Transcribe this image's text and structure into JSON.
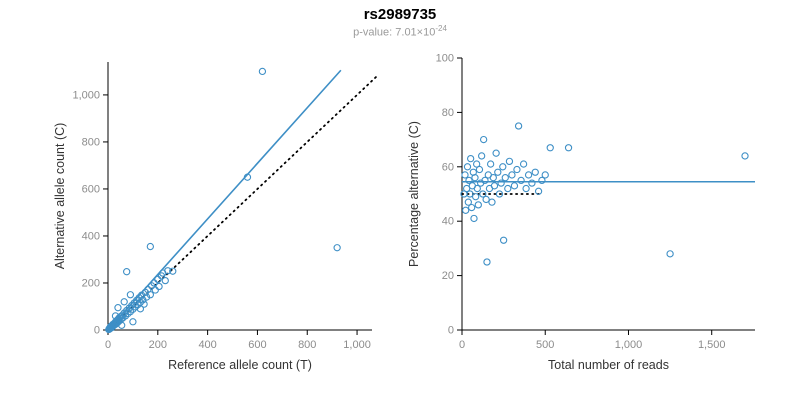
{
  "header": {
    "title": "rs2989735",
    "pvalue_prefix": "p-value: 7.01×10",
    "pvalue_exponent": "-24"
  },
  "colors": {
    "accent": "#3E8FC6",
    "reference_line": "#000000",
    "axis": "#000000",
    "tick_label": "#8c8c8c",
    "axis_title": "#333333",
    "subtitle": "#9a9a9a"
  },
  "chart_data": [
    {
      "type": "scatter",
      "title": "",
      "xlabel": "Reference allele count (T)",
      "ylabel": "Alternative allele count (C)",
      "xlim": [
        0,
        1060
      ],
      "ylim": [
        0,
        1140
      ],
      "xticks": [
        0,
        200,
        400,
        600,
        800,
        1000
      ],
      "yticks": [
        0,
        200,
        400,
        600,
        800,
        1000
      ],
      "grid": false,
      "legend": "none",
      "point_color": "#3E8FC6",
      "points": [
        [
          3,
          2
        ],
        [
          5,
          6
        ],
        [
          6,
          4
        ],
        [
          8,
          9
        ],
        [
          10,
          7
        ],
        [
          10,
          14
        ],
        [
          12,
          11
        ],
        [
          14,
          17
        ],
        [
          15,
          10
        ],
        [
          17,
          20
        ],
        [
          18,
          14
        ],
        [
          20,
          24
        ],
        [
          22,
          19
        ],
        [
          25,
          28
        ],
        [
          27,
          22
        ],
        [
          30,
          34
        ],
        [
          32,
          26
        ],
        [
          30,
          60
        ],
        [
          35,
          40
        ],
        [
          38,
          31
        ],
        [
          40,
          45
        ],
        [
          42,
          36
        ],
        [
          40,
          95
        ],
        [
          45,
          52
        ],
        [
          48,
          41
        ],
        [
          50,
          57
        ],
        [
          55,
          48
        ],
        [
          55,
          20
        ],
        [
          58,
          63
        ],
        [
          60,
          52
        ],
        [
          65,
          72
        ],
        [
          65,
          120
        ],
        [
          70,
          60
        ],
        [
          75,
          83
        ],
        [
          75,
          248
        ],
        [
          80,
          70
        ],
        [
          85,
          93
        ],
        [
          90,
          78
        ],
        [
          90,
          150
        ],
        [
          95,
          104
        ],
        [
          100,
          88
        ],
        [
          100,
          35
        ],
        [
          105,
          115
        ],
        [
          110,
          98
        ],
        [
          115,
          126
        ],
        [
          120,
          108
        ],
        [
          125,
          137
        ],
        [
          130,
          118
        ],
        [
          130,
          90
        ],
        [
          135,
          148
        ],
        [
          140,
          128
        ],
        [
          145,
          110
        ],
        [
          150,
          160
        ],
        [
          155,
          140
        ],
        [
          160,
          172
        ],
        [
          170,
          150
        ],
        [
          170,
          355
        ],
        [
          175,
          188
        ],
        [
          185,
          200
        ],
        [
          190,
          170
        ],
        [
          200,
          215
        ],
        [
          205,
          185
        ],
        [
          215,
          230
        ],
        [
          220,
          242
        ],
        [
          230,
          210
        ],
        [
          240,
          252
        ],
        [
          260,
          250
        ],
        [
          560,
          650
        ],
        [
          620,
          1100
        ],
        [
          920,
          350
        ]
      ],
      "lines": [
        {
          "name": "fit-line",
          "x1": 0,
          "y1": 0,
          "x2": 935,
          "y2": 1105,
          "color": "#3E8FC6",
          "dash": false,
          "width": 1.6
        },
        {
          "name": "identity-line",
          "x1": 0,
          "y1": 0,
          "x2": 1140,
          "y2": 1140,
          "color": "#000000",
          "dash": true,
          "width": 1.8
        }
      ]
    },
    {
      "type": "scatter",
      "title": "",
      "xlabel": "Total number of reads",
      "ylabel": "Percentage alternative (C)",
      "xlim": [
        0,
        1760
      ],
      "ylim": [
        0,
        100
      ],
      "xticks": [
        0,
        500,
        1000,
        1500
      ],
      "yticks": [
        0,
        20,
        40,
        60,
        80,
        100
      ],
      "grid": false,
      "legend": "none",
      "point_color": "#3E8FC6",
      "points": [
        [
          12,
          50
        ],
        [
          18,
          57
        ],
        [
          22,
          44
        ],
        [
          28,
          52
        ],
        [
          33,
          60
        ],
        [
          38,
          47
        ],
        [
          42,
          55
        ],
        [
          48,
          50
        ],
        [
          52,
          63
        ],
        [
          58,
          45
        ],
        [
          62,
          53
        ],
        [
          68,
          58
        ],
        [
          72,
          41
        ],
        [
          78,
          56
        ],
        [
          82,
          49
        ],
        [
          88,
          61
        ],
        [
          92,
          52
        ],
        [
          98,
          46
        ],
        [
          105,
          59
        ],
        [
          112,
          54
        ],
        [
          118,
          64
        ],
        [
          125,
          50
        ],
        [
          130,
          70
        ],
        [
          138,
          55
        ],
        [
          145,
          48
        ],
        [
          150,
          25
        ],
        [
          158,
          57
        ],
        [
          165,
          52
        ],
        [
          172,
          61
        ],
        [
          180,
          47
        ],
        [
          188,
          56
        ],
        [
          195,
          53
        ],
        [
          205,
          65
        ],
        [
          215,
          58
        ],
        [
          225,
          50
        ],
        [
          235,
          54
        ],
        [
          245,
          60
        ],
        [
          250,
          33
        ],
        [
          260,
          56
        ],
        [
          275,
          52
        ],
        [
          285,
          62
        ],
        [
          300,
          57
        ],
        [
          315,
          53
        ],
        [
          330,
          59
        ],
        [
          340,
          75
        ],
        [
          355,
          55
        ],
        [
          370,
          61
        ],
        [
          385,
          52
        ],
        [
          400,
          57
        ],
        [
          420,
          54
        ],
        [
          440,
          58
        ],
        [
          460,
          51
        ],
        [
          480,
          55
        ],
        [
          500,
          57
        ],
        [
          530,
          67
        ],
        [
          640,
          67
        ],
        [
          1250,
          28
        ],
        [
          1700,
          64
        ]
      ],
      "lines": [
        {
          "name": "mean-line",
          "x1": 0,
          "y1": 54.5,
          "x2": 1760,
          "y2": 54.5,
          "color": "#3E8FC6",
          "dash": false,
          "width": 1.6
        },
        {
          "name": "null-line",
          "x1": 0,
          "y1": 50,
          "x2": 470,
          "y2": 50,
          "color": "#000000",
          "dash": true,
          "width": 1.8
        }
      ]
    }
  ]
}
